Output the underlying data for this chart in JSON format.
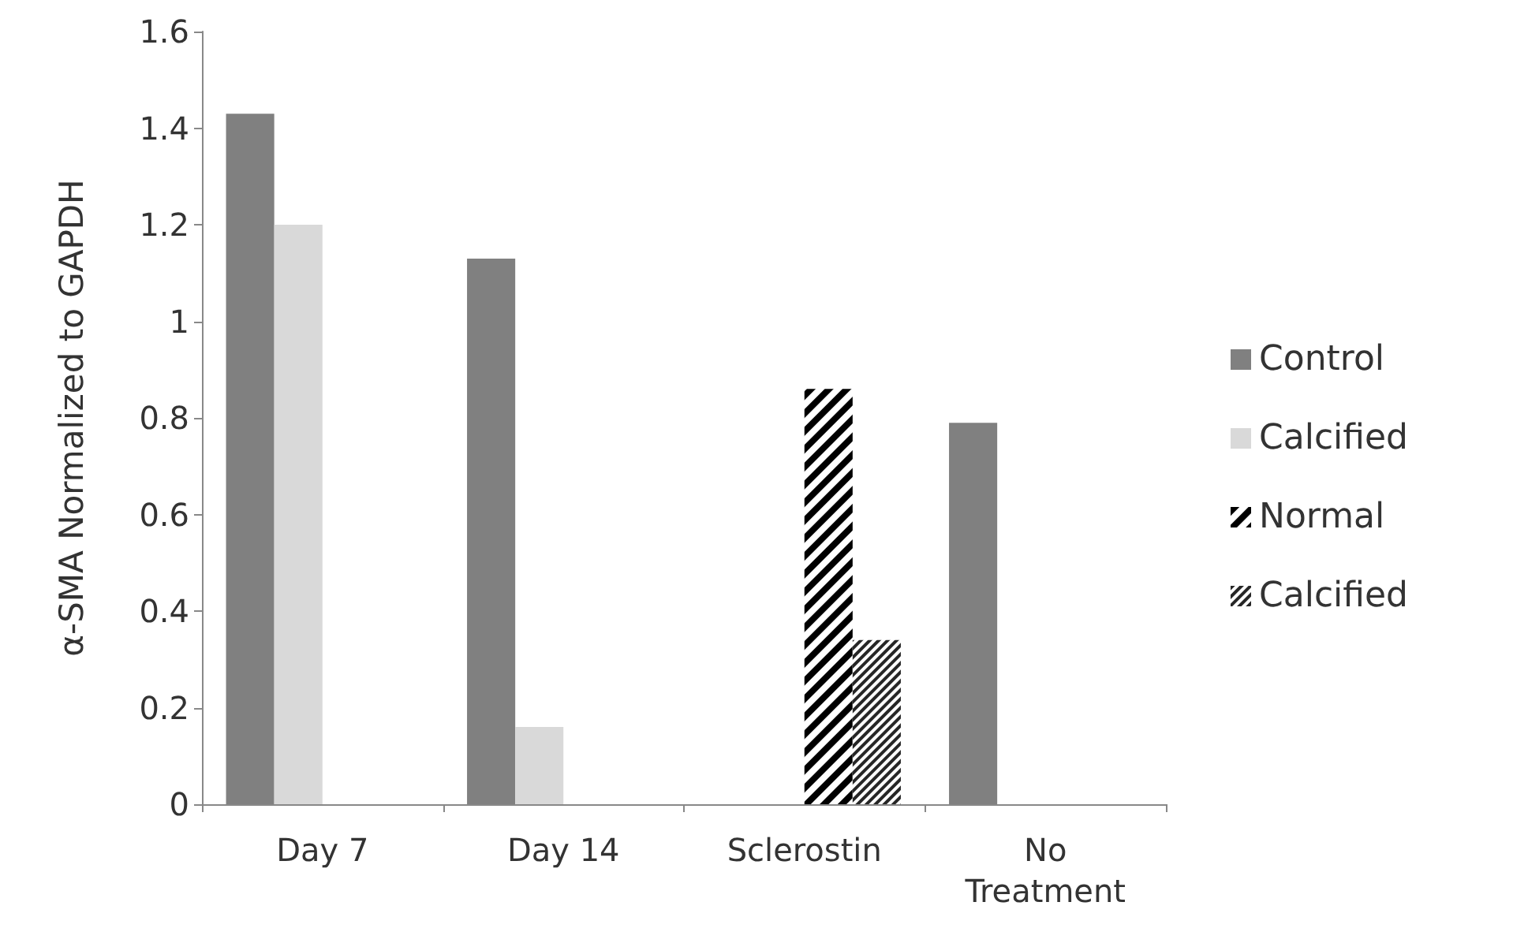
{
  "chart_data": {
    "type": "bar",
    "ylabel": "α-SMA Normalized to GAPDH",
    "categories": [
      "Day 7",
      "Day 14",
      "Sclerostin",
      "No\nTreatment"
    ],
    "series": [
      {
        "name": "Control",
        "color": "#808080",
        "values": [
          1.43,
          1.13,
          null,
          0.79
        ]
      },
      {
        "name": "Calcified",
        "color": "#d9d9d9",
        "values": [
          1.2,
          0.16,
          null,
          null
        ]
      },
      {
        "name": "Normal",
        "color": "#000000",
        "values": [
          null,
          null,
          0.86,
          null
        ]
      },
      {
        "name": "Calcified",
        "color": "#262626",
        "values": [
          null,
          null,
          0.34,
          null
        ]
      }
    ],
    "ylim": [
      0,
      1.6
    ],
    "yticks": [
      0,
      0.2,
      0.4,
      0.6,
      0.8,
      1,
      1.2,
      1.4,
      1.6
    ],
    "grid": false,
    "legend": "right"
  }
}
